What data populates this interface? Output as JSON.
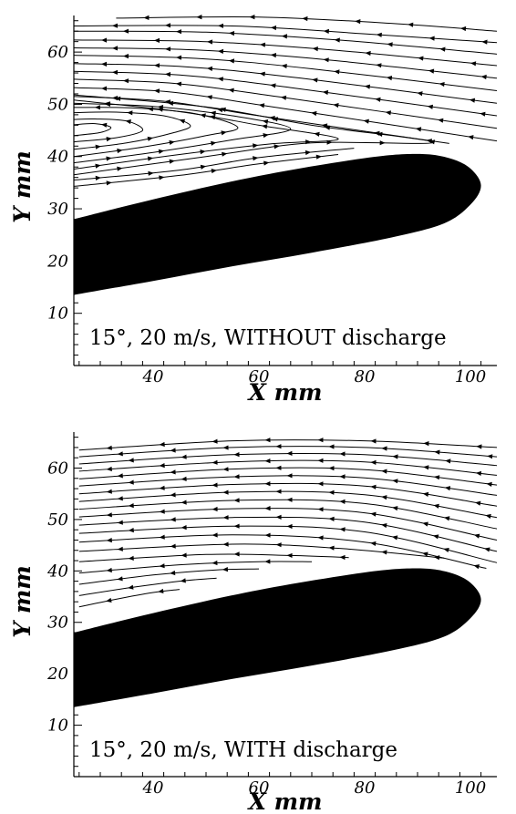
{
  "chart_data": [
    {
      "type": "line",
      "subtype": "streamline",
      "annotation": "15°, 20 m/s, WITHOUT discharge",
      "xlabel": "X mm",
      "ylabel": "Y mm",
      "xlim": [
        25,
        105
      ],
      "ylim": [
        0,
        67
      ],
      "xticks": [
        40,
        60,
        80,
        100
      ],
      "yticks": [
        10,
        20,
        30,
        40,
        50,
        60
      ],
      "grid": false,
      "airfoil": {
        "upper": [
          [
            25,
            28
          ],
          [
            40,
            31.8
          ],
          [
            60,
            36.3
          ],
          [
            80,
            39.7
          ],
          [
            90,
            40.5
          ],
          [
            96,
            39.7
          ],
          [
            100,
            37.7
          ],
          [
            102,
            34.4
          ]
        ],
        "lower": [
          [
            102,
            34.4
          ],
          [
            100,
            30.8
          ],
          [
            95,
            27.2
          ],
          [
            85,
            24.5
          ],
          [
            70,
            21.6
          ],
          [
            55,
            19
          ],
          [
            40,
            16.2
          ],
          [
            25,
            13.5
          ]
        ],
        "color": "#000000"
      },
      "streamlines": [
        {
          "points": [
            [
              33,
              66.5
            ],
            [
              60,
              66.7
            ],
            [
              85,
              65.5
            ],
            [
              105,
              64
            ]
          ],
          "direction": "left"
        },
        {
          "points": [
            [
              25,
              65
            ],
            [
              55,
              65
            ],
            [
              80,
              63.5
            ],
            [
              105,
              61.8
            ]
          ],
          "direction": "left"
        },
        {
          "points": [
            [
              25,
              64
            ],
            [
              50,
              63.8
            ],
            [
              75,
              62.3
            ],
            [
              105,
              59.6
            ]
          ],
          "direction": "left"
        },
        {
          "points": [
            [
              25,
              62.3
            ],
            [
              50,
              62
            ],
            [
              75,
              60.3
            ],
            [
              105,
              57.4
            ]
          ],
          "direction": "left"
        },
        {
          "points": [
            [
              25,
              60.8
            ],
            [
              48,
              60.4
            ],
            [
              72,
              58.6
            ],
            [
              105,
              55
            ]
          ],
          "direction": "left"
        },
        {
          "points": [
            [
              25,
              59.4
            ],
            [
              48,
              58.8
            ],
            [
              70,
              56.8
            ],
            [
              105,
              52.6
            ]
          ],
          "direction": "left"
        },
        {
          "points": [
            [
              25,
              57.8
            ],
            [
              46,
              57.2
            ],
            [
              68,
              55
            ],
            [
              105,
              50.2
            ]
          ],
          "direction": "left"
        },
        {
          "points": [
            [
              25,
              56.3
            ],
            [
              45,
              55.6
            ],
            [
              66,
              53.2
            ],
            [
              105,
              47.8
            ]
          ],
          "direction": "left"
        },
        {
          "points": [
            [
              25,
              54.8
            ],
            [
              44,
              54
            ],
            [
              64,
              51.4
            ],
            [
              105,
              45.4
            ]
          ],
          "direction": "left"
        },
        {
          "points": [
            [
              25,
              53.2
            ],
            [
              43,
              52.4
            ],
            [
              62,
              49.6
            ],
            [
              105,
              43
            ]
          ],
          "direction": "left"
        },
        {
          "points": [
            [
              25,
              51.5
            ],
            [
              42,
              50.6
            ],
            [
              60,
              47.8
            ],
            [
              96,
              42.5
            ]
          ],
          "direction": "left"
        },
        {
          "points": [
            [
              25,
              36.5
            ],
            [
              50,
              40
            ],
            [
              70,
              42.6
            ],
            [
              93,
              42.7
            ],
            [
              70,
              46
            ],
            [
              50,
              49.5
            ],
            [
              25,
              51.8
            ]
          ],
          "direction": "right"
        },
        {
          "points": [
            [
              25,
              37.6
            ],
            [
              45,
              40.4
            ],
            [
              62,
              42.4
            ],
            [
              75,
              43.4
            ],
            [
              60,
              46
            ],
            [
              45,
              48.6
            ],
            [
              25,
              50.8
            ]
          ],
          "direction": "right"
        },
        {
          "points": [
            [
              25,
              38.8
            ],
            [
              40,
              40.8
            ],
            [
              55,
              43.2
            ],
            [
              66,
              45.3
            ],
            [
              55,
              47.8
            ],
            [
              40,
              49.6
            ],
            [
              25,
              50.2
            ]
          ],
          "direction": "right"
        },
        {
          "points": [
            [
              25,
              40
            ],
            [
              38,
              41.8
            ],
            [
              50,
              44
            ],
            [
              56,
              45.6
            ],
            [
              48,
              48.2
            ],
            [
              36,
              49.3
            ],
            [
              25,
              49.4
            ]
          ],
          "direction": "right"
        },
        {
          "points": [
            [
              25,
              41.4
            ],
            [
              35,
              42.6
            ],
            [
              44,
              44.6
            ],
            [
              47,
              46
            ],
            [
              42,
              47.8
            ],
            [
              33,
              48.5
            ],
            [
              25,
              48.4
            ]
          ],
          "direction": "right"
        },
        {
          "points": [
            [
              25,
              42.8
            ],
            [
              33,
              43.6
            ],
            [
              38,
              45
            ],
            [
              35,
              46.8
            ],
            [
              29,
              47.2
            ],
            [
              25,
              47.1
            ]
          ],
          "direction": "right"
        },
        {
          "points": [
            [
              25,
              44
            ],
            [
              30,
              44.6
            ],
            [
              32,
              45.6
            ],
            [
              29,
              46.3
            ],
            [
              25,
              46.1
            ]
          ],
          "direction": "right"
        },
        {
          "points": [
            [
              25,
              35.5
            ],
            [
              45,
              37.4
            ],
            [
              60,
              39.8
            ],
            [
              78,
              41.6
            ]
          ],
          "direction": "right"
        },
        {
          "points": [
            [
              25,
              34.3
            ],
            [
              45,
              36.4
            ],
            [
              60,
              38.6
            ],
            [
              75,
              40.4
            ]
          ],
          "direction": "right"
        }
      ]
    },
    {
      "type": "line",
      "subtype": "streamline",
      "annotation": "15°, 20 m/s, WITH discharge",
      "xlabel": "X mm",
      "ylabel": "Y mm",
      "xlim": [
        25,
        105
      ],
      "ylim": [
        0,
        67
      ],
      "xticks": [
        40,
        60,
        80,
        100
      ],
      "yticks": [
        10,
        20,
        30,
        40,
        50,
        60
      ],
      "grid": false,
      "airfoil": {
        "upper": [
          [
            25,
            28
          ],
          [
            40,
            31.8
          ],
          [
            60,
            36.3
          ],
          [
            80,
            39.7
          ],
          [
            90,
            40.5
          ],
          [
            96,
            39.7
          ],
          [
            100,
            37.7
          ],
          [
            102,
            34.4
          ]
        ],
        "lower": [
          [
            102,
            34.4
          ],
          [
            100,
            30.8
          ],
          [
            95,
            27.2
          ],
          [
            85,
            24.5
          ],
          [
            70,
            21.6
          ],
          [
            55,
            19
          ],
          [
            40,
            16.2
          ],
          [
            25,
            13.5
          ]
        ],
        "color": "#000000"
      },
      "streamlines": [
        {
          "points": [
            [
              26,
              63.5
            ],
            [
              55,
              65.3
            ],
            [
              80,
              65.3
            ],
            [
              105,
              64
            ]
          ],
          "direction": "left"
        },
        {
          "points": [
            [
              26,
              62.2
            ],
            [
              55,
              64
            ],
            [
              80,
              64
            ],
            [
              105,
              62.2
            ]
          ],
          "direction": "left"
        },
        {
          "points": [
            [
              26,
              60.8
            ],
            [
              55,
              62.6
            ],
            [
              80,
              62.6
            ],
            [
              105,
              60.5
            ]
          ],
          "direction": "left"
        },
        {
          "points": [
            [
              26,
              59.4
            ],
            [
              55,
              61.2
            ],
            [
              80,
              61.2
            ],
            [
              105,
              58.6
            ]
          ],
          "direction": "left"
        },
        {
          "points": [
            [
              26,
              57.9
            ],
            [
              55,
              59.8
            ],
            [
              80,
              59.7
            ],
            [
              105,
              56.7
            ]
          ],
          "direction": "left"
        },
        {
          "points": [
            [
              26,
              56.5
            ],
            [
              55,
              58.3
            ],
            [
              80,
              58.1
            ],
            [
              105,
              54.7
            ]
          ],
          "direction": "left"
        },
        {
          "points": [
            [
              26,
              55
            ],
            [
              55,
              56.8
            ],
            [
              80,
              56.5
            ],
            [
              105,
              52.6
            ]
          ],
          "direction": "left"
        },
        {
          "points": [
            [
              26,
              53.5
            ],
            [
              55,
              55.3
            ],
            [
              80,
              54.8
            ],
            [
              105,
              50.4
            ]
          ],
          "direction": "left"
        },
        {
          "points": [
            [
              26,
              52
            ],
            [
              55,
              53.7
            ],
            [
              80,
              53.1
            ],
            [
              105,
              48.2
            ]
          ],
          "direction": "left"
        },
        {
          "points": [
            [
              26,
              50.5
            ],
            [
              55,
              52.1
            ],
            [
              80,
              51.3
            ],
            [
              105,
              46
            ]
          ],
          "direction": "left"
        },
        {
          "points": [
            [
              26,
              48.9
            ],
            [
              55,
              50.4
            ],
            [
              80,
              49.5
            ],
            [
              105,
              43.8
            ]
          ],
          "direction": "left"
        },
        {
          "points": [
            [
              26,
              47.3
            ],
            [
              55,
              48.7
            ],
            [
              80,
              47.6
            ],
            [
              105,
              41.6
            ]
          ],
          "direction": "left"
        },
        {
          "points": [
            [
              26,
              45.6
            ],
            [
              55,
              47
            ],
            [
              80,
              45.6
            ],
            [
              103,
              40.5
            ]
          ],
          "direction": "left"
        },
        {
          "points": [
            [
              26,
              43.8
            ],
            [
              55,
              45.2
            ],
            [
              75,
              44.4
            ],
            [
              95,
              42.5
            ]
          ],
          "direction": "left"
        },
        {
          "points": [
            [
              26,
              41.8
            ],
            [
              50,
              43.2
            ],
            [
              66,
              43
            ],
            [
              77,
              42.6
            ]
          ],
          "direction": "left"
        },
        {
          "points": [
            [
              26,
              39.6
            ],
            [
              45,
              41.2
            ],
            [
              60,
              41.8
            ],
            [
              70,
              41.8
            ]
          ],
          "direction": "left"
        },
        {
          "points": [
            [
              26,
              37.4
            ],
            [
              40,
              39.2
            ],
            [
              52,
              40.2
            ],
            [
              60,
              40.4
            ]
          ],
          "direction": "left"
        },
        {
          "points": [
            [
              26,
              35.2
            ],
            [
              36,
              36.8
            ],
            [
              46,
              38.1
            ],
            [
              52,
              38.6
            ]
          ],
          "direction": "left"
        },
        {
          "points": [
            [
              26,
              33
            ],
            [
              33,
              34.5
            ],
            [
              40,
              35.8
            ],
            [
              45,
              36.4
            ]
          ],
          "direction": "left"
        }
      ]
    }
  ]
}
